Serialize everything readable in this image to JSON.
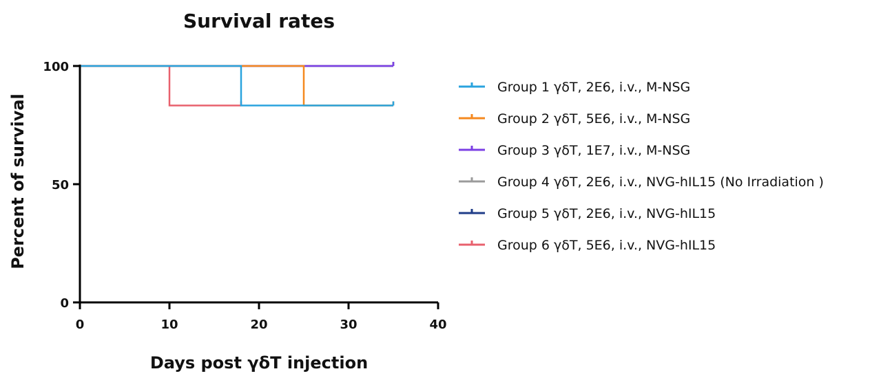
{
  "chart_data": {
    "type": "line",
    "step": true,
    "title": "Survival rates",
    "xlabel": "Days post γδT injection",
    "ylabel": "Percent of survival",
    "xlim": [
      0,
      40
    ],
    "ylim": [
      0,
      100
    ],
    "xticks": [
      0,
      10,
      20,
      30,
      40
    ],
    "yticks": [
      0,
      50,
      100
    ],
    "grid": false,
    "legend_position": "right",
    "series": [
      {
        "name": "Group 1 γδT, 2E6, i.v., M-NSG",
        "color": "#29a3de",
        "x": [
          0,
          18,
          35
        ],
        "y": [
          100,
          83.3,
          83.3
        ]
      },
      {
        "name": "Group 2 γδT, 5E6, i.v., M-NSG",
        "color": "#f5891f",
        "x": [
          0,
          25,
          35
        ],
        "y": [
          100,
          83.3,
          83.3
        ]
      },
      {
        "name": "Group 3 γδT, 1E7, i.v., M-NSG",
        "color": "#7b3fe4",
        "x": [
          0,
          35
        ],
        "y": [
          100,
          100
        ]
      },
      {
        "name": "Group 4 γδT, 2E6, i.v., NVG-hIL15 (No Irradiation )",
        "color": "#9b9b9b",
        "x": [
          0,
          35
        ],
        "y": [
          100,
          100
        ]
      },
      {
        "name": "Group 5 γδT, 2E6, i.v., NVG-hIL15",
        "color": "#1f3c88",
        "x": [
          0,
          35
        ],
        "y": [
          100,
          100
        ]
      },
      {
        "name": "Group 6 γδT, 5E6, i.v., NVG-hIL15",
        "color": "#e8606d",
        "x": [
          0,
          10,
          18
        ],
        "y": [
          100,
          83.3,
          83.3
        ]
      }
    ]
  }
}
